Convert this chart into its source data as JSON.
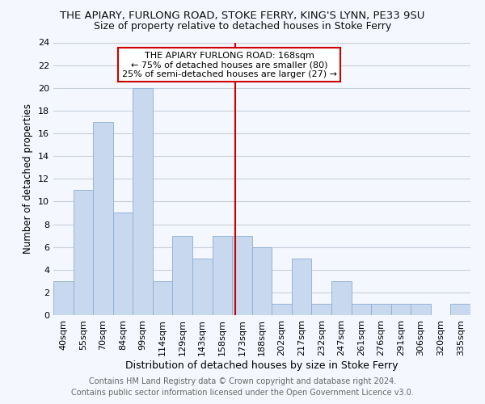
{
  "title": "THE APIARY, FURLONG ROAD, STOKE FERRY, KING'S LYNN, PE33 9SU",
  "subtitle": "Size of property relative to detached houses in Stoke Ferry",
  "xlabel": "Distribution of detached houses by size in Stoke Ferry",
  "ylabel": "Number of detached properties",
  "categories": [
    "40sqm",
    "55sqm",
    "70sqm",
    "84sqm",
    "99sqm",
    "114sqm",
    "129sqm",
    "143sqm",
    "158sqm",
    "173sqm",
    "188sqm",
    "202sqm",
    "217sqm",
    "232sqm",
    "247sqm",
    "261sqm",
    "276sqm",
    "291sqm",
    "306sqm",
    "320sqm",
    "335sqm"
  ],
  "values": [
    3,
    11,
    17,
    9,
    20,
    3,
    7,
    5,
    7,
    7,
    6,
    1,
    5,
    1,
    3,
    1,
    1,
    1,
    1,
    0,
    1
  ],
  "bar_color": "#c8d8ee",
  "bar_edge_color": "#8eadd4",
  "grid_color": "#c8d0dc",
  "background_color": "#f4f7fd",
  "annotation_title": "THE APIARY FURLONG ROAD: 168sqm",
  "annotation_line1": "← 75% of detached houses are smaller (80)",
  "annotation_line2": "25% of semi-detached houses are larger (27) →",
  "annotation_box_color": "#ffffff",
  "annotation_border_color": "#cc0000",
  "red_line_color": "#cc0000",
  "ylim": [
    0,
    24
  ],
  "yticks": [
    0,
    2,
    4,
    6,
    8,
    10,
    12,
    14,
    16,
    18,
    20,
    22,
    24
  ],
  "title_fontsize": 9.5,
  "subtitle_fontsize": 9,
  "xlabel_fontsize": 9,
  "ylabel_fontsize": 8.5,
  "tick_fontsize": 8,
  "annotation_fontsize": 8,
  "footer_fontsize": 7,
  "footer_line1": "Contains HM Land Registry data © Crown copyright and database right 2024.",
  "footer_line2": "Contains public sector information licensed under the Open Government Licence v3.0."
}
